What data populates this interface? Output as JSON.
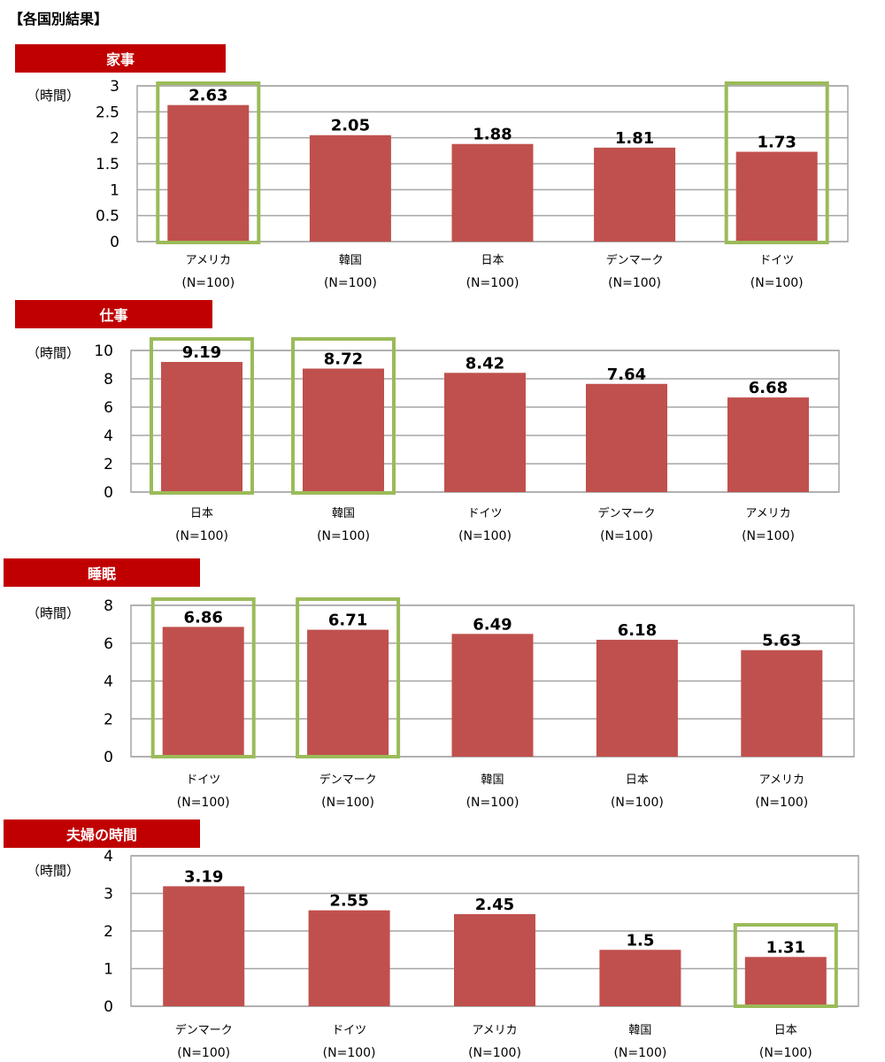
{
  "page_title": "【各国別結果】",
  "colors": {
    "bar": "#c0504d",
    "highlight": "#9bbb59",
    "banner": "#c00000",
    "grid": "#a6a6a6"
  },
  "chart_data": [
    {
      "type": "bar",
      "title": "家事",
      "ylabel": "（時間）",
      "ylim": [
        0,
        3
      ],
      "yticks": [
        "0",
        "0.5",
        "1",
        "1.5",
        "2",
        "2.5",
        "3"
      ],
      "categories": [
        "アメリカ",
        "韓国",
        "日本",
        "デンマーク",
        "ドイツ"
      ],
      "sample_sizes": [
        "(N=100)",
        "(N=100)",
        "(N=100)",
        "(N=100)",
        "(N=100)"
      ],
      "values": [
        2.63,
        2.05,
        1.88,
        1.81,
        1.73
      ],
      "value_labels": [
        "2.63",
        "2.05",
        "1.88",
        "1.81",
        "1.73"
      ],
      "highlighted": [
        true,
        false,
        false,
        false,
        true
      ]
    },
    {
      "type": "bar",
      "title": "仕事",
      "ylabel": "（時間）",
      "ylim": [
        0,
        10
      ],
      "yticks": [
        "0",
        "2",
        "4",
        "6",
        "8",
        "10"
      ],
      "categories": [
        "日本",
        "韓国",
        "ドイツ",
        "デンマーク",
        "アメリカ"
      ],
      "sample_sizes": [
        "(N=100)",
        "(N=100)",
        "(N=100)",
        "(N=100)",
        "(N=100)"
      ],
      "values": [
        9.19,
        8.72,
        8.42,
        7.64,
        6.68
      ],
      "value_labels": [
        "9.19",
        "8.72",
        "8.42",
        "7.64",
        "6.68"
      ],
      "highlighted": [
        true,
        true,
        false,
        false,
        false
      ]
    },
    {
      "type": "bar",
      "title": "睡眠",
      "ylabel": "（時間）",
      "ylim": [
        0,
        8
      ],
      "yticks": [
        "0",
        "2",
        "4",
        "6",
        "8"
      ],
      "categories": [
        "ドイツ",
        "デンマーク",
        "韓国",
        "日本",
        "アメリカ"
      ],
      "sample_sizes": [
        "(N=100)",
        "(N=100)",
        "(N=100)",
        "(N=100)",
        "(N=100)"
      ],
      "values": [
        6.86,
        6.71,
        6.49,
        6.18,
        5.63
      ],
      "value_labels": [
        "6.86",
        "6.71",
        "6.49",
        "6.18",
        "5.63"
      ],
      "highlighted": [
        true,
        true,
        false,
        false,
        false
      ]
    },
    {
      "type": "bar",
      "title": "夫婦の時間",
      "ylabel": "（時間）",
      "ylim": [
        0,
        4
      ],
      "yticks": [
        "0",
        "1",
        "2",
        "3",
        "4"
      ],
      "categories": [
        "デンマーク",
        "ドイツ",
        "アメリカ",
        "韓国",
        "日本"
      ],
      "sample_sizes": [
        "(N=100)",
        "(N=100)",
        "(N=100)",
        "(N=100)",
        "(N=100)"
      ],
      "values": [
        3.19,
        2.55,
        2.45,
        1.5,
        1.31
      ],
      "value_labels": [
        "3.19",
        "2.55",
        "2.45",
        "1.5",
        "1.31"
      ],
      "highlighted": [
        false,
        false,
        false,
        false,
        true
      ]
    }
  ]
}
